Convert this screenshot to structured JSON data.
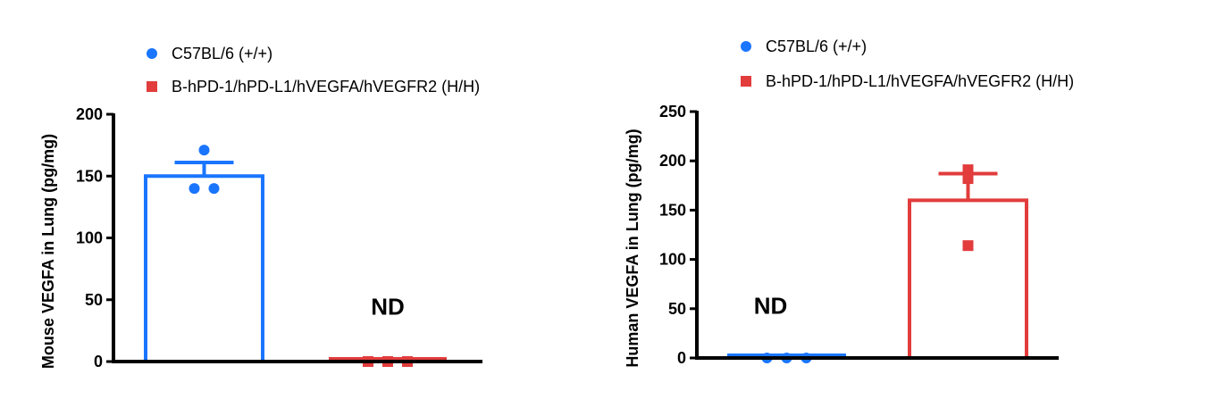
{
  "chart_data": [
    {
      "type": "bar",
      "ylabel": "Mouse VEGFA in Lung (pg/mg)",
      "ylim": [
        0,
        200
      ],
      "yticks": [
        "0",
        "50",
        "100",
        "150",
        "200"
      ],
      "legend": [
        {
          "label": "C57BL/6 (+/+)",
          "color": "#1a75ff",
          "marker": "circle"
        },
        {
          "label": "B-hPD-1/hPD-L1/hVEGFA/hVEGFR2 (H/H)",
          "color": "#e23c3c",
          "marker": "square"
        }
      ],
      "legend_placement": "top",
      "series": [
        {
          "name": "C57BL/6 (+/+)",
          "mean": 150,
          "sem_upper": 161,
          "points": [
            171,
            140,
            140
          ]
        },
        {
          "name": "B-hPD-1/hPD-L1/hVEGFA/hVEGFR2 (H/H)",
          "mean": 2,
          "sem_upper": 2,
          "points": [
            0,
            0,
            0
          ],
          "annotation": "ND"
        }
      ]
    },
    {
      "type": "bar",
      "ylabel": "Human VEGFA in Lung (pg/mg)",
      "ylim": [
        0,
        250
      ],
      "yticks": [
        "0",
        "50",
        "100",
        "150",
        "200",
        "250"
      ],
      "legend": [
        {
          "label": "C57BL/6 (+/+)",
          "color": "#1a75ff",
          "marker": "circle"
        },
        {
          "label": "B-hPD-1/hPD-L1/hVEGFA/hVEGFR2 (H/H)",
          "color": "#e23c3c",
          "marker": "square"
        }
      ],
      "legend_placement": "top",
      "series": [
        {
          "name": "C57BL/6 (+/+)",
          "mean": 2,
          "sem_upper": 2,
          "points": [
            0,
            0,
            0
          ],
          "annotation": "ND"
        },
        {
          "name": "B-hPD-1/hPD-L1/hVEGFA/hVEGFR2 (H/H)",
          "mean": 160,
          "sem_upper": 187,
          "points": [
            191,
            182,
            114
          ]
        }
      ]
    }
  ]
}
